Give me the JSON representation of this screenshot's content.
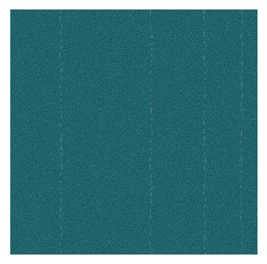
{
  "image": {
    "subject": "carpet-tile-texture",
    "colors": {
      "background": "#ffffff",
      "base": "#13575e",
      "dark_fleck": "#08282c",
      "mid_fleck": "#1f7c86",
      "light_fleck": "#34a2ad",
      "stripe": "#8a9094"
    }
  }
}
